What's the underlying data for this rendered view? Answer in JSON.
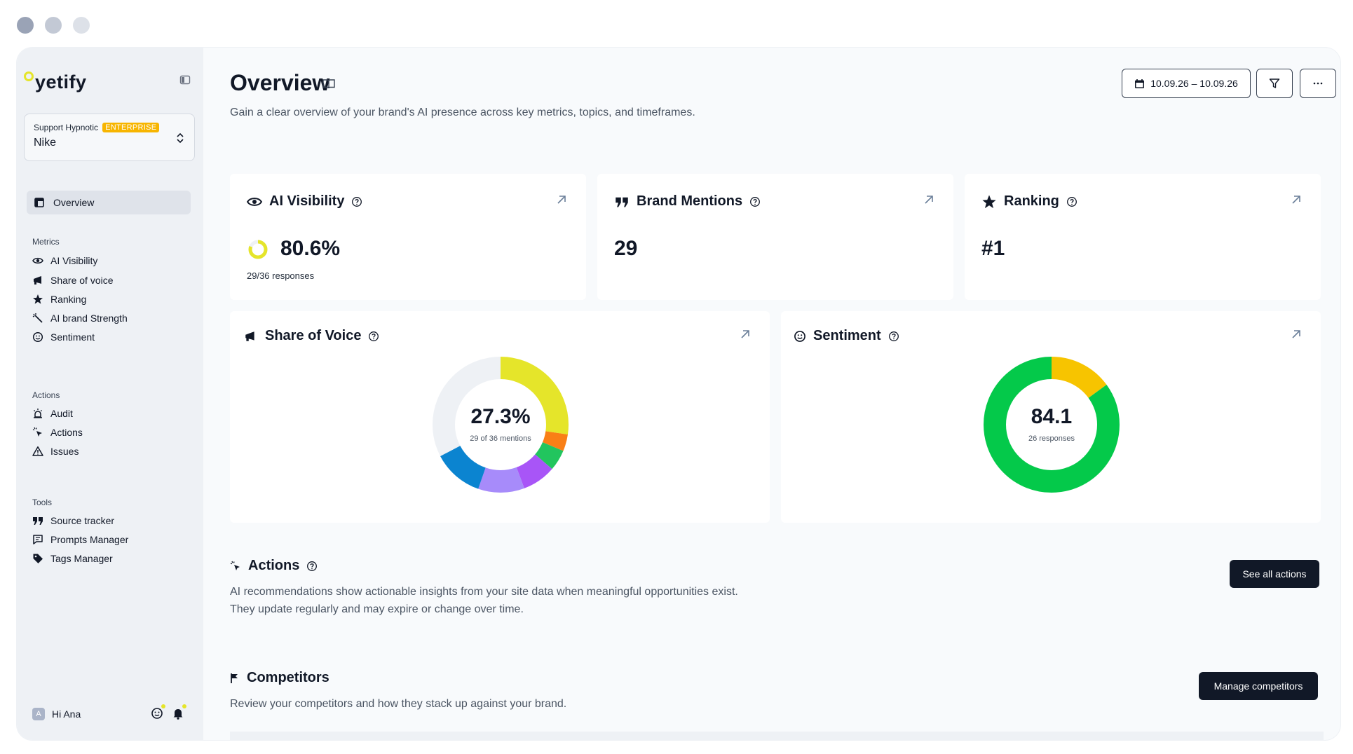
{
  "brand": {
    "name": "yetify",
    "accent": "#e5e52a"
  },
  "org": {
    "label": "Support Hypnotic",
    "badge": "ENTERPRISE",
    "name": "Nike"
  },
  "nav": {
    "active": {
      "label": "Overview",
      "icon": "layout-icon"
    },
    "sections": [
      {
        "title": "Metrics",
        "items": [
          {
            "label": "AI Visibility",
            "icon": "eye-icon"
          },
          {
            "label": "Share of voice",
            "icon": "megaphone-icon"
          },
          {
            "label": "Ranking",
            "icon": "star-icon"
          },
          {
            "label": "AI brand Strength",
            "icon": "wand-icon"
          },
          {
            "label": "Sentiment",
            "icon": "smile-icon"
          }
        ]
      },
      {
        "title": "Actions",
        "items": [
          {
            "label": "Audit",
            "icon": "siren-icon"
          },
          {
            "label": "Actions",
            "icon": "cursor-click-icon"
          },
          {
            "label": "Issues",
            "icon": "warning-icon"
          }
        ]
      },
      {
        "title": "Tools",
        "items": [
          {
            "label": "Source tracker",
            "icon": "quote-icon"
          },
          {
            "label": "Prompts Manager",
            "icon": "message-icon"
          },
          {
            "label": "Tags Manager",
            "icon": "tag-icon"
          }
        ]
      }
    ]
  },
  "user": {
    "greeting": "Hi Ana",
    "initial": "A"
  },
  "header": {
    "title": "Overview",
    "subtitle": "Gain a clear overview of your brand's AI presence across key metrics, topics, and timeframes.",
    "date_range": "10.09.26 – 10.09.26"
  },
  "metrics": {
    "visibility": {
      "title": "AI Visibility",
      "value": "80.6%",
      "sub": "29/36 responses",
      "fraction": 0.806
    },
    "mentions": {
      "title": "Brand Mentions",
      "value": "29"
    },
    "ranking": {
      "title": "Ranking",
      "value": "#1"
    }
  },
  "share_of_voice": {
    "title": "Share of Voice",
    "value": "27.3%",
    "sub": "29 of 36 mentions",
    "segments": [
      {
        "value": 27.3,
        "color": "#e5e52a"
      },
      {
        "value": 4,
        "color": "#f97f16"
      },
      {
        "value": 5,
        "color": "#22c55e"
      },
      {
        "value": 8,
        "color": "#a855f7"
      },
      {
        "value": 11,
        "color": "#a78bfa"
      },
      {
        "value": 12,
        "color": "#0b84d0"
      },
      {
        "value": 32.7,
        "color": "#eef1f5"
      }
    ]
  },
  "sentiment": {
    "title": "Sentiment",
    "value": "84.1",
    "sub": "26 responses",
    "segments": [
      {
        "value": 15,
        "color": "#f7c400"
      },
      {
        "value": 85,
        "color": "#04c94a"
      }
    ]
  },
  "actions_section": {
    "title": "Actions",
    "line1": "AI recommendations show actionable insights from your site data when meaningful opportunities exist.",
    "line2": "They update regularly and may expire or change over time.",
    "button": "See all actions"
  },
  "competitors_section": {
    "title": "Competitors",
    "text": "Review your competitors and how they stack up against your brand.",
    "button": "Manage competitors"
  }
}
